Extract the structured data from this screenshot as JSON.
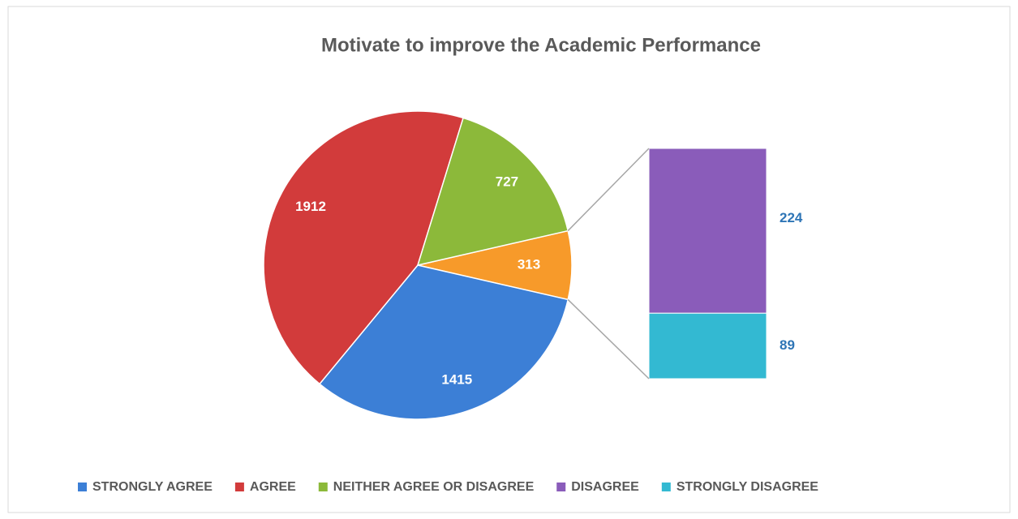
{
  "chart_data": {
    "type": "pie-of-bar",
    "title": "Motivate to improve the Academic Performance",
    "categories": [
      "STRONGLY AGREE",
      "AGREE",
      "NEITHER AGREE OR DISAGREE",
      "DISAGREE",
      "STRONGLY DISAGREE"
    ],
    "values": [
      1415,
      1912,
      727,
      224,
      89
    ],
    "colors": [
      "#3c7fd6",
      "#d23b3b",
      "#8cb93a",
      "#8a5cba",
      "#33b9d2"
    ],
    "secondary_total": 313,
    "secondary_color": "#f79a2a",
    "legend": "bottom"
  }
}
